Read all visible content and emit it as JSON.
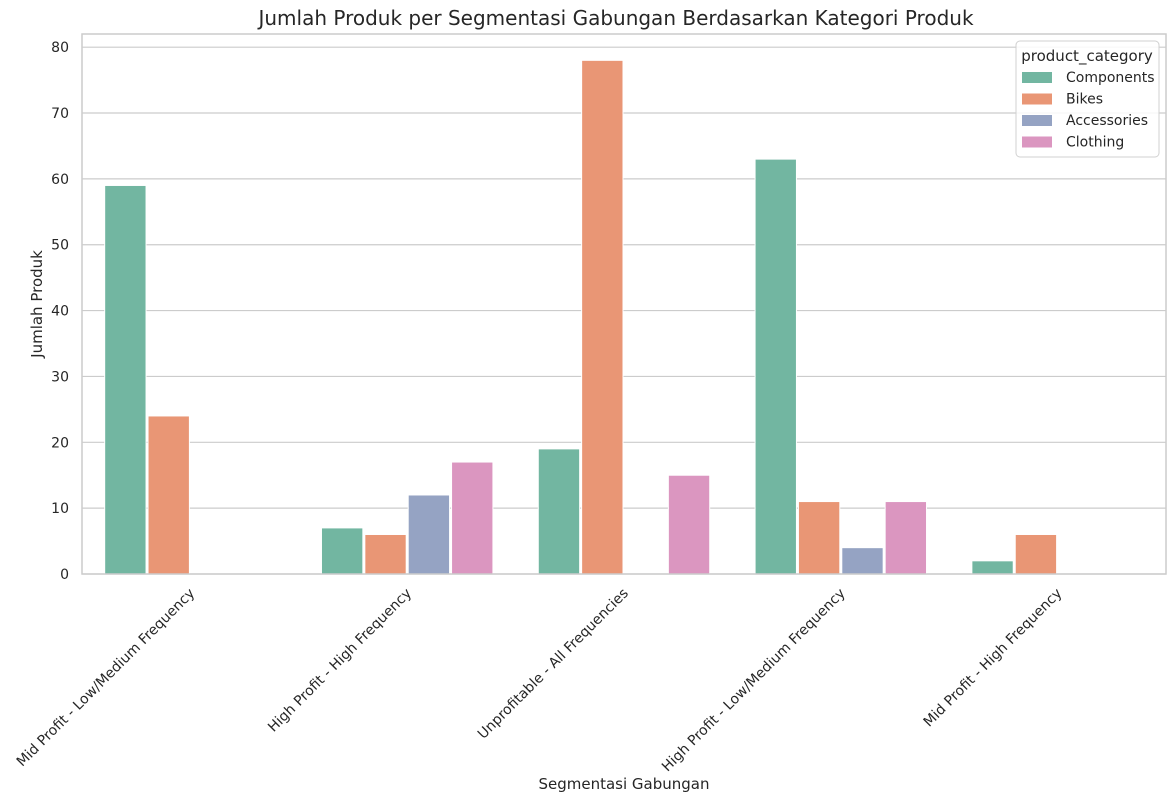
{
  "chart_data": {
    "type": "bar",
    "title": "Jumlah Produk per Segmentasi Gabungan Berdasarkan Kategori Produk",
    "xlabel": "Segmentasi Gabungan",
    "ylabel": "Jumlah Produk",
    "ylim": [
      0,
      82
    ],
    "yticks": [
      0,
      10,
      20,
      30,
      40,
      50,
      60,
      70,
      80
    ],
    "grid": true,
    "legend_position": "top-right",
    "legend_title": "product_category",
    "categories": [
      "Mid Profit - Low/Medium Frequency",
      "High Profit - High Frequency",
      "Unprofitable - All Frequencies",
      "High Profit - Low/Medium Frequency",
      "Mid Profit - High Frequency"
    ],
    "series": [
      {
        "name": "Components",
        "color": "#72b6a1",
        "values": [
          59,
          7,
          19,
          63,
          2
        ]
      },
      {
        "name": "Bikes",
        "color": "#e99675",
        "values": [
          24,
          6,
          78,
          11,
          6
        ]
      },
      {
        "name": "Accessories",
        "color": "#95a3c3",
        "values": [
          0,
          12,
          0,
          4,
          0
        ]
      },
      {
        "name": "Clothing",
        "color": "#db96c0",
        "values": [
          0,
          17,
          15,
          11,
          0
        ]
      }
    ]
  }
}
